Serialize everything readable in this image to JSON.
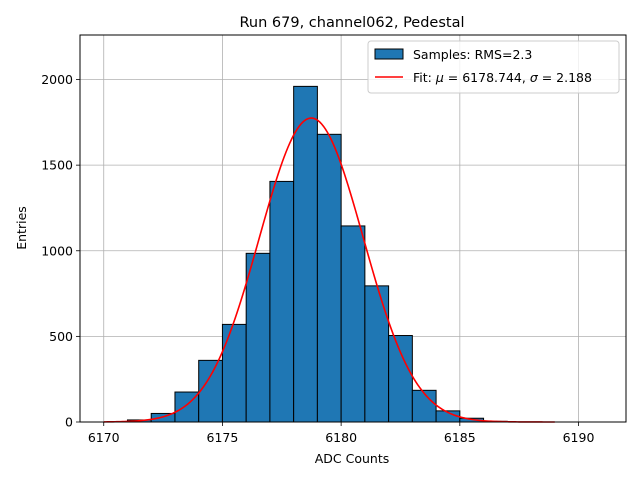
{
  "chart_data": {
    "type": "bar",
    "title": "Run 679, channel062, Pedestal",
    "xlabel": "ADC Counts",
    "ylabel": "Entries",
    "xlim": [
      6169,
      6192
    ],
    "ylim": [
      0,
      2260
    ],
    "xticks": [
      6170,
      6175,
      6180,
      6185,
      6190
    ],
    "yticks": [
      0,
      500,
      1000,
      1500,
      2000
    ],
    "grid": true,
    "legend_position": "top-right",
    "histogram": {
      "name": "Samples: RMS=2.3",
      "bins": [
        {
          "start": 6171,
          "end": 6172,
          "count": 12
        },
        {
          "start": 6172,
          "end": 6173,
          "count": 50
        },
        {
          "start": 6173,
          "end": 6174,
          "count": 175
        },
        {
          "start": 6174,
          "end": 6175,
          "count": 360
        },
        {
          "start": 6175,
          "end": 6176,
          "count": 570
        },
        {
          "start": 6176,
          "end": 6177,
          "count": 985
        },
        {
          "start": 6177,
          "end": 6178,
          "count": 1405
        },
        {
          "start": 6178,
          "end": 6179,
          "count": 1960
        },
        {
          "start": 6179,
          "end": 6180,
          "count": 1680
        },
        {
          "start": 6180,
          "end": 6181,
          "count": 1145
        },
        {
          "start": 6181,
          "end": 6182,
          "count": 795
        },
        {
          "start": 6182,
          "end": 6183,
          "count": 505
        },
        {
          "start": 6183,
          "end": 6184,
          "count": 185
        },
        {
          "start": 6184,
          "end": 6185,
          "count": 65
        },
        {
          "start": 6185,
          "end": 6186,
          "count": 22
        },
        {
          "start": 6186,
          "end": 6187,
          "count": 4
        }
      ]
    },
    "fit": {
      "label": "Fit: μ = 6178.744, σ = 2.188",
      "label_prefix": "Fit: ",
      "label_mu": "μ",
      "label_mid": " = 6178.744, ",
      "label_sigma": "σ",
      "label_suffix": " = 2.188",
      "mu": 6178.744,
      "sigma": 2.188,
      "amplitude": 1775,
      "x_range": [
        6170,
        6189
      ]
    },
    "colors": {
      "bar_fill": "#1f77b4",
      "bar_edge": "#000000",
      "fit_line": "#ff0000",
      "grid": "#b0b0b0"
    }
  }
}
